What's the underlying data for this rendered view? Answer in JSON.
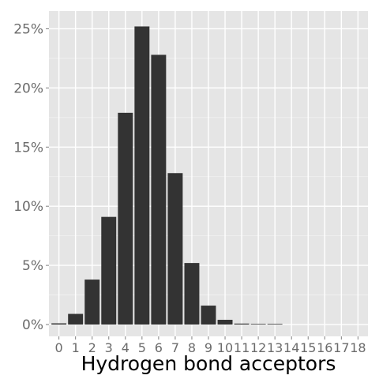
{
  "chart_data": {
    "type": "bar",
    "xlabel": "Hydrogen bond acceptors",
    "ylabel": "",
    "categories": [
      "0",
      "1",
      "2",
      "3",
      "4",
      "5",
      "6",
      "7",
      "8",
      "9",
      "10",
      "11",
      "12",
      "13",
      "14",
      "15",
      "16",
      "17",
      "18"
    ],
    "values": [
      0.1,
      0.9,
      3.8,
      9.1,
      17.9,
      25.2,
      22.8,
      12.8,
      5.2,
      1.6,
      0.4,
      0.08,
      0.02,
      0.01,
      0.0,
      0.0,
      0.0,
      0.0,
      0.0
    ],
    "ylim": [
      -1.0,
      26.5
    ],
    "yticks": [
      0,
      5,
      10,
      15,
      20,
      25
    ],
    "ytick_labels": [
      "0%",
      "5%",
      "10%",
      "15%",
      "20%",
      "25%"
    ],
    "grid": true,
    "colors": {
      "panel": "#e5e5e5",
      "grid_major": "#ffffff",
      "grid_minor": "#f2f2f2",
      "bar": "#333333"
    }
  }
}
